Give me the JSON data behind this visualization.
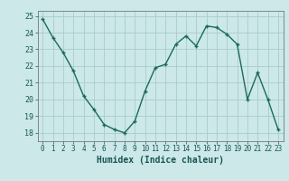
{
  "x": [
    0,
    1,
    2,
    3,
    4,
    5,
    6,
    7,
    8,
    9,
    10,
    11,
    12,
    13,
    14,
    15,
    16,
    17,
    18,
    19,
    20,
    21,
    22,
    23
  ],
  "y": [
    24.8,
    23.7,
    22.8,
    21.7,
    20.2,
    19.4,
    18.5,
    18.2,
    18.0,
    18.7,
    20.5,
    21.9,
    22.1,
    23.3,
    23.8,
    23.2,
    24.4,
    24.3,
    23.9,
    23.3,
    20.0,
    21.6,
    20.0,
    18.2
  ],
  "xlabel": "Humidex (Indice chaleur)",
  "ylabel_ticks": [
    18,
    19,
    20,
    21,
    22,
    23,
    24,
    25
  ],
  "xlim": [
    -0.5,
    23.5
  ],
  "ylim": [
    17.5,
    25.3
  ],
  "line_color": "#1a6b5a",
  "marker": "+",
  "bg_color": "#cce8e8",
  "grid_color": "#aacccc",
  "xtick_labels": [
    "0",
    "1",
    "2",
    "3",
    "4",
    "5",
    "6",
    "7",
    "8",
    "9",
    "10",
    "11",
    "12",
    "13",
    "14",
    "15",
    "16",
    "17",
    "18",
    "19",
    "20",
    "21",
    "22",
    "23"
  ],
  "linewidth": 1.0,
  "markersize": 3.5,
  "xlabel_fontsize": 7,
  "tick_fontsize": 5.5
}
